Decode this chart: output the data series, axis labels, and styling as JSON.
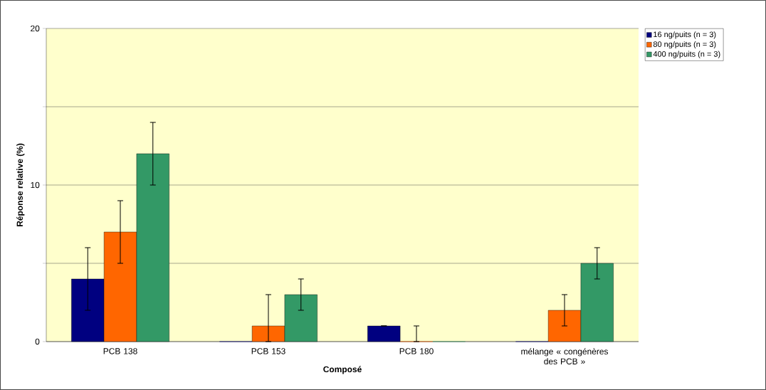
{
  "chart_data": {
    "type": "bar",
    "xlabel": "Composé",
    "ylabel": "Réponse relative (%)",
    "categories": [
      "PCB 138",
      "PCB 153",
      "PCB 180",
      "mélange « congénères des PCB »"
    ],
    "series": [
      {
        "name": "16 ng/puits (n = 3)",
        "color": "#000080",
        "values": [
          4,
          0,
          1,
          0
        ],
        "errors": [
          2,
          null,
          0,
          null
        ]
      },
      {
        "name": "80 ng/puits (n = 3)",
        "color": "#ff6600",
        "values": [
          7,
          1,
          0,
          2
        ],
        "errors": [
          2,
          [
            0,
            3
          ],
          [
            0,
            1
          ],
          1
        ]
      },
      {
        "name": "400 ng/puits (n = 3)",
        "color": "#339966",
        "values": [
          12,
          3,
          0,
          5
        ],
        "errors": [
          2,
          1,
          null,
          1
        ]
      }
    ],
    "ylim": [
      0,
      20
    ],
    "yticks": [
      0,
      {
        "value": 5,
        "label": null
      },
      10,
      {
        "value": 15,
        "label": null
      },
      20
    ],
    "grid": "y",
    "legend": "right"
  }
}
